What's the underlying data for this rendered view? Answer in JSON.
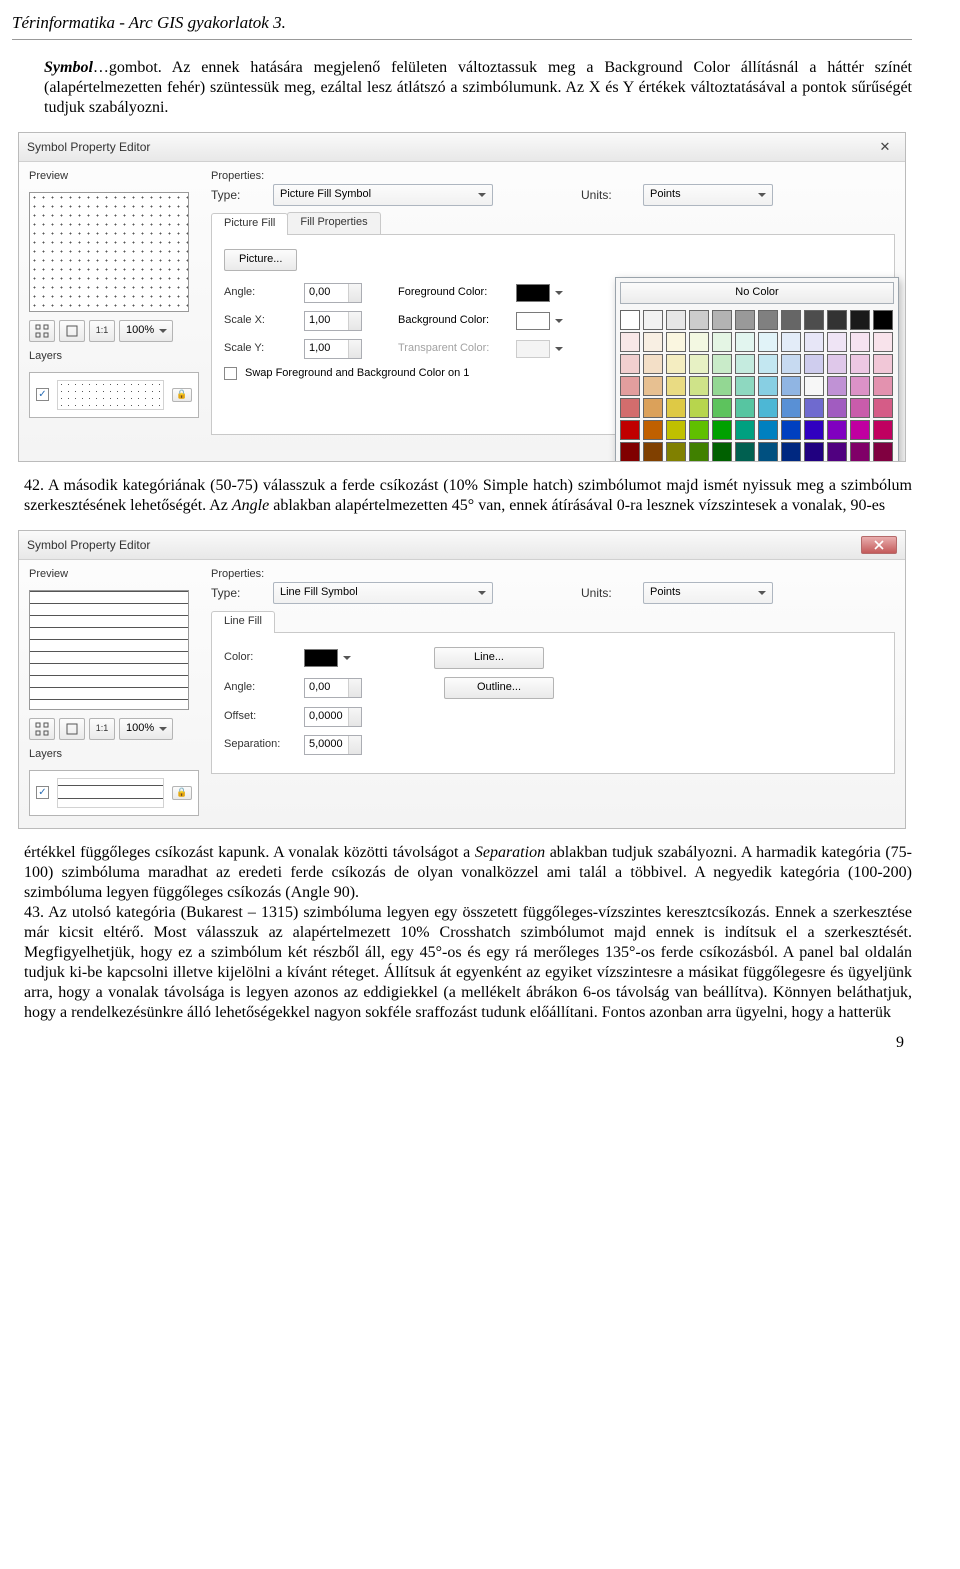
{
  "doc": {
    "header": "Térinformatika - Arc GIS gyakorlatok 3.",
    "intro1a": "Symbol",
    "intro1b": "…gombot. Az ennek hatására megjelenő felületen változtassuk meg a Background Color állításnál a háttér színét (alapértelmezetten fehér) szüntessük meg, ezáltal lesz átlátszó a szimbólumunk. Az X és Y értékek változtatásával a pontok sűrűségét tudjuk szabályozni.",
    "p42a": "42. A második kategóriának (50-75) válasszuk a ferde csíkozást (10% Simple hatch) szimbólumot majd ismét nyissuk meg a szimbólum szerkesztésének lehetőségét. Az ",
    "p42_angle": "Angle",
    "p42b": " ablakban alapértelmezetten 45° van, ennek átírásával 0-ra lesznek vízszintesek a vonalak, 90-es",
    "p42c": "értékkel függőleges csíkozást kapunk. A vonalak közötti távolságot a ",
    "p42_sep": "Separation",
    "p42d": " ablakban tudjuk szabályozni. A harmadik kategória (75-100) szimbóluma maradhat az eredeti ferde csíkozás de olyan vonalközzel ami talál a többivel. A negyedik kategória (100-200) szimbóluma legyen függőleges csíkozás (Angle 90).",
    "p43": "43. Az utolsó kategória (Bukarest – 1315) szimbóluma legyen egy összetett függőleges-vízszintes keresztcsíkozás. Ennek a szerkesztése már kicsit eltérő. Most válasszuk az alapértelmezett 10% Crosshatch szimbólumot majd ennek is indítsuk el a szerkesztését. Megfigyelhetjük, hogy ez a szimbólum két részből áll, egy 45°-os és egy rá merőleges 135°-os ferde csíkozásból. A panel bal oldalán tudjuk ki-be kapcsolni illetve kijelölni a kívánt réteget. Állítsuk át egyenként az egyiket vízszintesre a másikat függőlegesre és ügyeljünk arra, hogy a vonalak távolsága is legyen azonos az eddigiekkel (a mellékelt ábrákon 6-os távolság van beállítva). Könnyen beláthatjuk, hogy a rendelkezésünkre álló lehetőségekkel nagyon sokféle sraffozást tudunk előállítani. Fontos azonban arra ügyelni, hogy a hatterük",
    "page": "9"
  },
  "d1": {
    "title": "Symbol Property Editor",
    "preview": "Preview",
    "layers": "Layers",
    "zoom": "100%",
    "properties": "Properties:",
    "type_label": "Type:",
    "type_value": "Picture Fill Symbol",
    "units_label": "Units:",
    "units_value": "Points",
    "tab1": "Picture Fill",
    "tab2": "Fill Properties",
    "picture_btn": "Picture...",
    "angle_label": "Angle:",
    "angle_value": "0,00",
    "fg_label": "Foreground Color:",
    "scalex_label": "Scale X:",
    "scalex_value": "1,00",
    "bg_label": "Background Color:",
    "scaley_label": "Scale Y:",
    "scaley_value": "1,00",
    "transp_label": "Transparent Color:",
    "swap_label": "Swap Foreground and Background Color on 1"
  },
  "colorpicker": {
    "nocolor": "No Color",
    "rows": [
      [
        "#ffffff",
        "#f2f2f2",
        "#e6e6e6",
        "#cccccc",
        "#b3b3b3",
        "#999999",
        "#808080",
        "#666666",
        "#4d4d4d",
        "#333333",
        "#1a1a1a",
        "#000000"
      ],
      [
        "#f8e7e7",
        "#f8efe3",
        "#faf6e0",
        "#f3f8e2",
        "#e4f5e4",
        "#e2f5ef",
        "#e1f3f8",
        "#e3ecf8",
        "#e7e6f7",
        "#efe4f5",
        "#f6e3f1",
        "#f8e3eb"
      ],
      [
        "#f1cfcf",
        "#f3dfc7",
        "#f4edc1",
        "#e7f1c4",
        "#c9ebc9",
        "#c5ebdf",
        "#c3e7f1",
        "#c7daf1",
        "#cfcdee",
        "#dfc8ea",
        "#edc7e3",
        "#f1c7d7"
      ],
      [
        "#e29e9e",
        "#e7c091",
        "#e9db83",
        "#cfe389",
        "#93d793",
        "#8ed8c0",
        "#88cfe3",
        "#90b5e3",
        "#9f9cd e",
        "#c092d5",
        "#db92c7",
        "#e392af"
      ],
      [
        "#d36d6d",
        "#dba15a",
        "#dec945",
        "#b7d54d",
        "#5dc35d",
        "#57c5a1",
        "#4db7d5",
        "#5990d5",
        "#6f6acf",
        "#a15cc0",
        "#c95cab",
        "#d55c87"
      ],
      [
        "#c00000",
        "#c06000",
        "#c0c000",
        "#60c000",
        "#00a000",
        "#00a080",
        "#0080c0",
        "#0040c0",
        "#3000c0",
        "#8000c0",
        "#c000a0",
        "#c00060"
      ],
      [
        "#800000",
        "#804000",
        "#808000",
        "#408000",
        "#006000",
        "#006050",
        "#005080",
        "#002880",
        "#200080",
        "#500080",
        "#800068",
        "#800040"
      ]
    ]
  },
  "d2": {
    "title": "Symbol Property Editor",
    "preview": "Preview",
    "layers": "Layers",
    "zoom": "100%",
    "properties": "Properties:",
    "type_label": "Type:",
    "type_value": "Line Fill Symbol",
    "units_label": "Units:",
    "units_value": "Points",
    "tab1": "Line Fill",
    "color_label": "Color:",
    "line_btn": "Line...",
    "outline_btn": "Outline...",
    "angle_label": "Angle:",
    "angle_value": "0,00",
    "offset_label": "Offset:",
    "offset_value": "0,0000",
    "sep_label": "Separation:",
    "sep_value": "5,0000"
  }
}
